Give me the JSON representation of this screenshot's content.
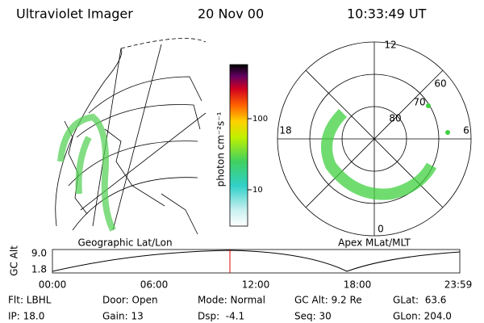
{
  "header": {
    "instrument": "Ultraviolet Imager",
    "date": "20 Nov 00",
    "time": "10:33:49 UT"
  },
  "colorbar": {
    "label": "photon cm⁻²s⁻¹",
    "ticks": [
      "100",
      "10"
    ]
  },
  "left_panel": {
    "caption": "Geographic Lat/Lon"
  },
  "right_panel": {
    "caption": "Apex MLat/MLT",
    "mlt_labels": [
      "12",
      "18",
      "0",
      "6"
    ],
    "mlat_labels": [
      "60",
      "70",
      "80"
    ]
  },
  "altitude_plot": {
    "ylabel": "GC Alt",
    "yticks": [
      "9.0",
      "1.8"
    ],
    "xticks": [
      "00:00",
      "06:00",
      "12:00",
      "18:00",
      "23:59"
    ]
  },
  "info": [
    [
      "Flt: LBHL",
      "Door: Open",
      "Mode: Normal",
      "GC Alt: 9.2 Re",
      "GLat:  63.6"
    ],
    [
      "IP: 18.0",
      "Gain: 13",
      "Dsp:  -4.1",
      "Seq: 30",
      "GLon: 204.0"
    ]
  ]
}
